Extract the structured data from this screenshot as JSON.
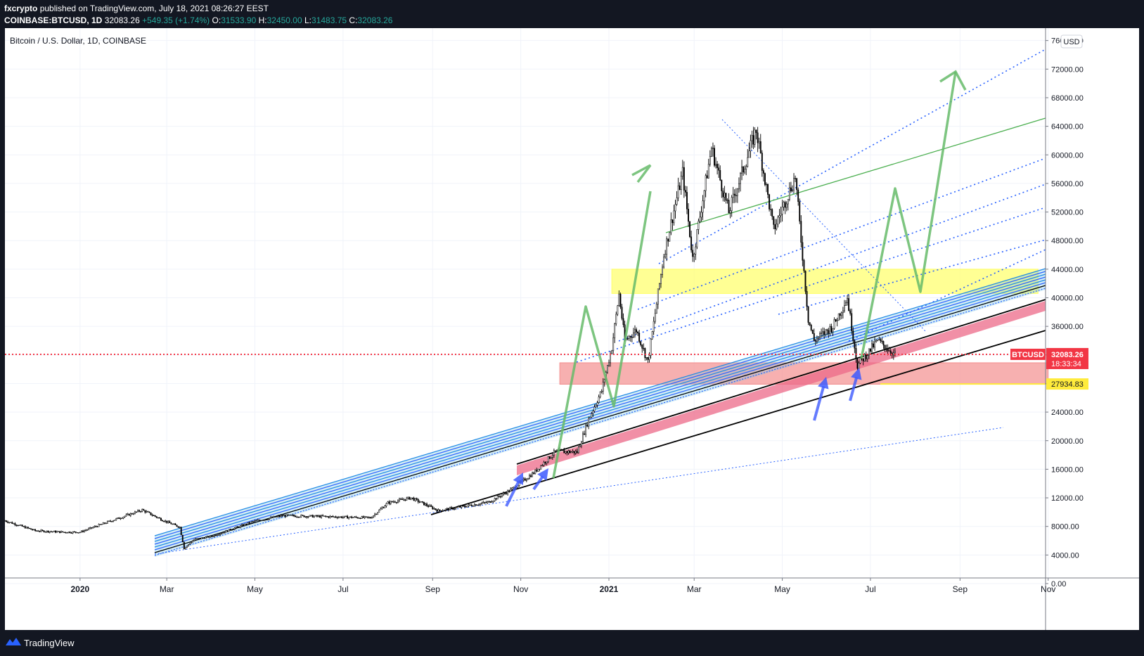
{
  "header": {
    "author": "fxcrypto",
    "published": "published on TradingView.com, July 18, 2021 08:26:27 EEST",
    "symbol": "COINBASE:BTCUSD, 1D",
    "last": "32083.26",
    "change": "+549.35 (+1.74%)",
    "o_label": "O:",
    "o": "31533.90",
    "h_label": "H:",
    "h": "32450.00",
    "l_label": "L:",
    "l": "31483.75",
    "c_label": "C:",
    "c": "32083.26"
  },
  "chart_title": "Bitcoin / U.S. Dollar, 1D, COINBASE",
  "currency": "USD",
  "price_tag": {
    "symbol": "BTCUSD",
    "price": "32083.26",
    "countdown": "18:33:34"
  },
  "level_tag": "27934.83",
  "footer": {
    "brand": "TradingView"
  },
  "colors": {
    "up": "#26a69a",
    "down": "#ef5350",
    "candle": "#000000",
    "price_line": "#f23645",
    "level_line": "#ffeb3b",
    "channel_blue": "#2962ff",
    "projection": "#66bb6a",
    "resistance_zone": "#ffff66",
    "support_zone": "#f48f8f"
  },
  "chart_data": {
    "type": "line",
    "title": "Bitcoin / U.S. Dollar, 1D, COINBASE",
    "xlabel": "",
    "ylabel": "",
    "y_unit": "USD",
    "ylim": [
      -400,
      76400
    ],
    "y_ticks": [
      "0.00",
      "4000.00",
      "8000.00",
      "12000.00",
      "16000.00",
      "20000.00",
      "24000.00",
      "28000.00",
      "32000.00",
      "36000.00",
      "40000.00",
      "44000.00",
      "48000.00",
      "52000.00",
      "56000.00",
      "60000.00",
      "64000.00",
      "68000.00",
      "72000.00",
      "76000.00"
    ],
    "x_ticks": [
      "2020",
      "Mar",
      "May",
      "Jul",
      "Sep",
      "Nov",
      "2021",
      "Mar",
      "May",
      "Jul",
      "Sep",
      "Nov"
    ],
    "x_tick_dates": [
      "2020-01-01",
      "2020-03-01",
      "2020-05-01",
      "2020-07-01",
      "2020-09-01",
      "2020-11-01",
      "2021-01-01",
      "2021-03-01",
      "2021-05-01",
      "2021-07-01",
      "2021-09-01",
      "2021-11-01"
    ],
    "x_range": [
      "2019-11-10",
      "2021-11-25"
    ],
    "price_path": [
      [
        "2019-11-10",
        8800
      ],
      [
        "2019-12-01",
        7400
      ],
      [
        "2019-12-20",
        7200
      ],
      [
        "2020-01-01",
        7200
      ],
      [
        "2020-01-20",
        8600
      ],
      [
        "2020-02-13",
        10300
      ],
      [
        "2020-02-28",
        8800
      ],
      [
        "2020-03-10",
        7900
      ],
      [
        "2020-03-13",
        4900
      ],
      [
        "2020-03-20",
        6200
      ],
      [
        "2020-04-01",
        6600
      ],
      [
        "2020-04-30",
        8700
      ],
      [
        "2020-05-20",
        9500
      ],
      [
        "2020-06-15",
        9400
      ],
      [
        "2020-07-20",
        9200
      ],
      [
        "2020-08-01",
        11300
      ],
      [
        "2020-08-17",
        12000
      ],
      [
        "2020-09-05",
        10200
      ],
      [
        "2020-10-10",
        11400
      ],
      [
        "2020-10-25",
        13100
      ],
      [
        "2020-11-10",
        15500
      ],
      [
        "2020-11-25",
        18500
      ],
      [
        "2020-12-10",
        18400
      ],
      [
        "2020-12-18",
        23000
      ],
      [
        "2020-12-27",
        27000
      ],
      [
        "2021-01-03",
        33000
      ],
      [
        "2021-01-08",
        40500
      ],
      [
        "2021-01-12",
        34000
      ],
      [
        "2021-01-20",
        35500
      ],
      [
        "2021-01-28",
        31000
      ],
      [
        "2021-02-08",
        46000
      ],
      [
        "2021-02-21",
        57500
      ],
      [
        "2021-02-28",
        45500
      ],
      [
        "2021-03-13",
        61000
      ],
      [
        "2021-03-25",
        52000
      ],
      [
        "2021-04-13",
        63500
      ],
      [
        "2021-04-25",
        49500
      ],
      [
        "2021-05-10",
        57000
      ],
      [
        "2021-05-19",
        37000
      ],
      [
        "2021-05-23",
        34000
      ],
      [
        "2021-06-05",
        36000
      ],
      [
        "2021-06-15",
        40000
      ],
      [
        "2021-06-22",
        30500
      ],
      [
        "2021-07-06",
        34000
      ],
      [
        "2021-07-18",
        32083.26
      ]
    ],
    "series": [
      {
        "type": "candlestick",
        "interval": "1D",
        "ohlc_last": {
          "date": "2021-07-18",
          "open": 31533.9,
          "high": 32450.0,
          "low": 31483.75,
          "close": 32083.26
        }
      }
    ],
    "horizontal_lines": [
      {
        "price": 32083.26
      },
      {
        "price": 27934.83
      }
    ],
    "zones": [
      {
        "color": "resistance_zone",
        "y_from": 40600,
        "y_to": 44000,
        "x_from": "2021-01-03",
        "x_to": "2021-10-25"
      },
      {
        "color": "support_zone",
        "y_from": 27900,
        "y_to": 30900,
        "x_from": "2020-11-28",
        "x_to": "2021-11-01"
      }
    ],
    "annotations": [
      "price projection path up to ~71000",
      "support arrows at Dec 2020 and Jun–Jul 2021 lows"
    ],
    "grid": true,
    "legend": "none"
  }
}
